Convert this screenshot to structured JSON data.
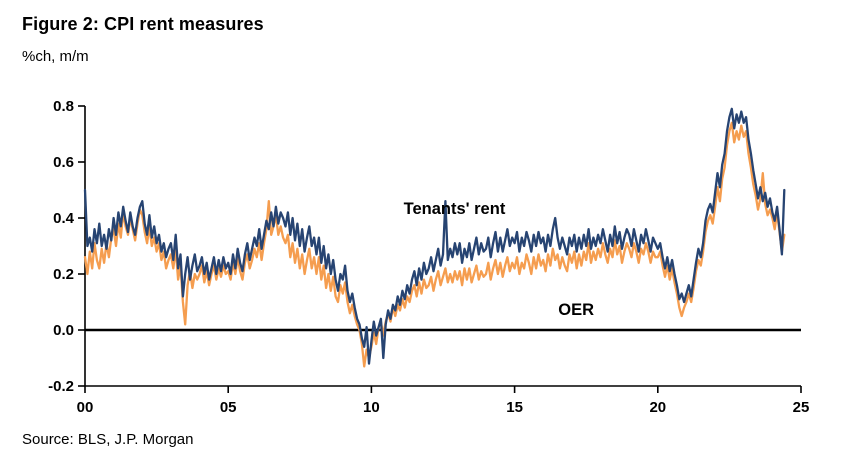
{
  "figure": {
    "title": "Figure 2: CPI rent measures",
    "unit_label": "%ch, m/m",
    "source": "Source: BLS, J.P. Morgan"
  },
  "chart_data": {
    "type": "line",
    "title": "Figure 2: CPI rent measures",
    "xlabel": "",
    "ylabel": "%ch, m/m",
    "grid": false,
    "legend_position": "inline-annotations",
    "xlim": [
      2000,
      2025
    ],
    "ylim": [
      -0.2,
      0.8
    ],
    "xtick_values": [
      2000,
      2005,
      2010,
      2015,
      2020,
      2025
    ],
    "xtick_labels": [
      "00",
      "05",
      "10",
      "15",
      "20",
      "25"
    ],
    "ytick_values": [
      -0.2,
      0.0,
      0.2,
      0.4,
      0.6,
      0.8
    ],
    "ytick_labels": [
      "-0.2",
      "0.0",
      "0.2",
      "0.4",
      "0.6",
      "0.8"
    ],
    "x_start_year": 2000,
    "x_frequency": "monthly",
    "axis_color": "#000000",
    "zero_line": true,
    "annotations": [
      {
        "text": "Tenants' rent",
        "x": 2012.9,
        "y": 0.435
      },
      {
        "text": "OER",
        "x": 2017.15,
        "y": 0.075
      }
    ],
    "series": [
      {
        "name": "Tenants' rent",
        "color": "#274472",
        "values": [
          0.5,
          0.3,
          0.33,
          0.28,
          0.36,
          0.31,
          0.38,
          0.3,
          0.34,
          0.29,
          0.36,
          0.32,
          0.4,
          0.34,
          0.42,
          0.37,
          0.44,
          0.39,
          0.35,
          0.42,
          0.37,
          0.34,
          0.4,
          0.44,
          0.46,
          0.38,
          0.34,
          0.41,
          0.33,
          0.37,
          0.31,
          0.34,
          0.28,
          0.31,
          0.26,
          0.29,
          0.31,
          0.25,
          0.34,
          0.22,
          0.27,
          0.12,
          0.2,
          0.26,
          0.18,
          0.23,
          0.27,
          0.21,
          0.23,
          0.26,
          0.2,
          0.24,
          0.18,
          0.22,
          0.26,
          0.2,
          0.25,
          0.21,
          0.26,
          0.22,
          0.24,
          0.2,
          0.27,
          0.22,
          0.29,
          0.24,
          0.21,
          0.27,
          0.31,
          0.25,
          0.29,
          0.33,
          0.3,
          0.36,
          0.29,
          0.34,
          0.39,
          0.36,
          0.42,
          0.37,
          0.44,
          0.38,
          0.42,
          0.4,
          0.37,
          0.42,
          0.34,
          0.4,
          0.32,
          0.38,
          0.3,
          0.36,
          0.28,
          0.33,
          0.37,
          0.3,
          0.33,
          0.27,
          0.33,
          0.24,
          0.3,
          0.22,
          0.27,
          0.2,
          0.25,
          0.18,
          0.14,
          0.2,
          0.18,
          0.23,
          0.14,
          0.1,
          0.13,
          0.08,
          0.04,
          0.02,
          -0.03,
          -0.06,
          0.01,
          -0.12,
          -0.04,
          0.03,
          -0.02,
          0.01,
          0.04,
          -0.1,
          0.02,
          0.07,
          0.04,
          0.09,
          0.07,
          0.12,
          0.09,
          0.14,
          0.11,
          0.16,
          0.13,
          0.18,
          0.21,
          0.16,
          0.22,
          0.18,
          0.24,
          0.2,
          0.22,
          0.26,
          0.21,
          0.25,
          0.29,
          0.23,
          0.27,
          0.46,
          0.25,
          0.29,
          0.26,
          0.31,
          0.27,
          0.31,
          0.24,
          0.29,
          0.26,
          0.31,
          0.25,
          0.29,
          0.33,
          0.27,
          0.31,
          0.28,
          0.29,
          0.33,
          0.26,
          0.31,
          0.35,
          0.28,
          0.33,
          0.28,
          0.32,
          0.36,
          0.3,
          0.33,
          0.31,
          0.35,
          0.28,
          0.33,
          0.3,
          0.35,
          0.32,
          0.28,
          0.34,
          0.3,
          0.35,
          0.31,
          0.33,
          0.28,
          0.34,
          0.3,
          0.36,
          0.4,
          0.33,
          0.29,
          0.33,
          0.3,
          0.27,
          0.33,
          0.3,
          0.34,
          0.28,
          0.33,
          0.29,
          0.34,
          0.3,
          0.36,
          0.29,
          0.33,
          0.3,
          0.34,
          0.31,
          0.36,
          0.32,
          0.28,
          0.34,
          0.3,
          0.37,
          0.31,
          0.35,
          0.29,
          0.33,
          0.36,
          0.34,
          0.3,
          0.36,
          0.32,
          0.28,
          0.34,
          0.31,
          0.36,
          0.32,
          0.28,
          0.33,
          0.31,
          0.29,
          0.31,
          0.26,
          0.22,
          0.26,
          0.21,
          0.25,
          0.2,
          0.16,
          0.11,
          0.13,
          0.1,
          0.13,
          0.16,
          0.12,
          0.18,
          0.24,
          0.29,
          0.26,
          0.31,
          0.39,
          0.43,
          0.45,
          0.42,
          0.49,
          0.56,
          0.51,
          0.59,
          0.63,
          0.71,
          0.76,
          0.79,
          0.72,
          0.77,
          0.74,
          0.78,
          0.74,
          0.76,
          0.68,
          0.63,
          0.57,
          0.52,
          0.47,
          0.51,
          0.46,
          0.49,
          0.44,
          0.47,
          0.42,
          0.39,
          0.44,
          0.36,
          0.27,
          0.5
        ]
      },
      {
        "name": "OER",
        "color": "#F59D4F",
        "values": [
          0.26,
          0.2,
          0.28,
          0.22,
          0.31,
          0.25,
          0.22,
          0.29,
          0.24,
          0.31,
          0.26,
          0.33,
          0.36,
          0.3,
          0.38,
          0.33,
          0.42,
          0.37,
          0.34,
          0.4,
          0.36,
          0.32,
          0.38,
          0.43,
          0.41,
          0.35,
          0.31,
          0.37,
          0.3,
          0.33,
          0.28,
          0.31,
          0.25,
          0.28,
          0.22,
          0.25,
          0.27,
          0.22,
          0.29,
          0.18,
          0.23,
          0.1,
          0.02,
          0.16,
          0.21,
          0.15,
          0.2,
          0.18,
          0.2,
          0.23,
          0.17,
          0.21,
          0.16,
          0.2,
          0.23,
          0.18,
          0.22,
          0.19,
          0.23,
          0.2,
          0.21,
          0.18,
          0.24,
          0.2,
          0.26,
          0.21,
          0.18,
          0.24,
          0.27,
          0.22,
          0.25,
          0.29,
          0.26,
          0.31,
          0.25,
          0.31,
          0.36,
          0.46,
          0.34,
          0.37,
          0.41,
          0.34,
          0.37,
          0.33,
          0.31,
          0.34,
          0.26,
          0.31,
          0.24,
          0.29,
          0.22,
          0.27,
          0.2,
          0.25,
          0.29,
          0.22,
          0.26,
          0.2,
          0.26,
          0.18,
          0.23,
          0.15,
          0.2,
          0.14,
          0.19,
          0.12,
          0.1,
          0.16,
          0.13,
          0.17,
          0.1,
          0.06,
          0.09,
          0.05,
          0.02,
          0.0,
          -0.05,
          -0.13,
          -0.07,
          -0.1,
          -0.06,
          -0.01,
          -0.05,
          0.01,
          0.03,
          -0.02,
          0.03,
          0.06,
          0.03,
          0.08,
          0.05,
          0.09,
          0.07,
          0.11,
          0.08,
          0.12,
          0.1,
          0.14,
          0.16,
          0.12,
          0.17,
          0.13,
          0.18,
          0.15,
          0.16,
          0.19,
          0.14,
          0.18,
          0.21,
          0.16,
          0.19,
          0.22,
          0.17,
          0.2,
          0.17,
          0.21,
          0.18,
          0.21,
          0.16,
          0.22,
          0.18,
          0.22,
          0.17,
          0.2,
          0.23,
          0.18,
          0.21,
          0.19,
          0.2,
          0.24,
          0.18,
          0.22,
          0.25,
          0.2,
          0.24,
          0.19,
          0.23,
          0.26,
          0.21,
          0.24,
          0.22,
          0.26,
          0.2,
          0.24,
          0.22,
          0.27,
          0.24,
          0.2,
          0.26,
          0.22,
          0.27,
          0.23,
          0.25,
          0.21,
          0.27,
          0.23,
          0.29,
          0.25,
          0.27,
          0.22,
          0.26,
          0.23,
          0.21,
          0.27,
          0.24,
          0.28,
          0.22,
          0.27,
          0.23,
          0.28,
          0.25,
          0.31,
          0.24,
          0.28,
          0.25,
          0.29,
          0.26,
          0.31,
          0.27,
          0.24,
          0.29,
          0.26,
          0.32,
          0.27,
          0.3,
          0.24,
          0.28,
          0.31,
          0.29,
          0.26,
          0.31,
          0.28,
          0.24,
          0.29,
          0.27,
          0.31,
          0.28,
          0.24,
          0.28,
          0.26,
          0.26,
          0.28,
          0.23,
          0.19,
          0.23,
          0.18,
          0.22,
          0.17,
          0.13,
          0.08,
          0.05,
          0.08,
          0.1,
          0.13,
          0.1,
          0.15,
          0.21,
          0.25,
          0.23,
          0.28,
          0.35,
          0.39,
          0.41,
          0.38,
          0.44,
          0.51,
          0.46,
          0.54,
          0.58,
          0.66,
          0.71,
          0.74,
          0.67,
          0.71,
          0.68,
          0.73,
          0.69,
          0.71,
          0.63,
          0.58,
          0.52,
          0.48,
          0.43,
          0.47,
          0.56,
          0.45,
          0.41,
          0.43,
          0.4,
          0.36,
          0.42,
          0.35,
          0.28,
          0.34
        ]
      }
    ]
  }
}
